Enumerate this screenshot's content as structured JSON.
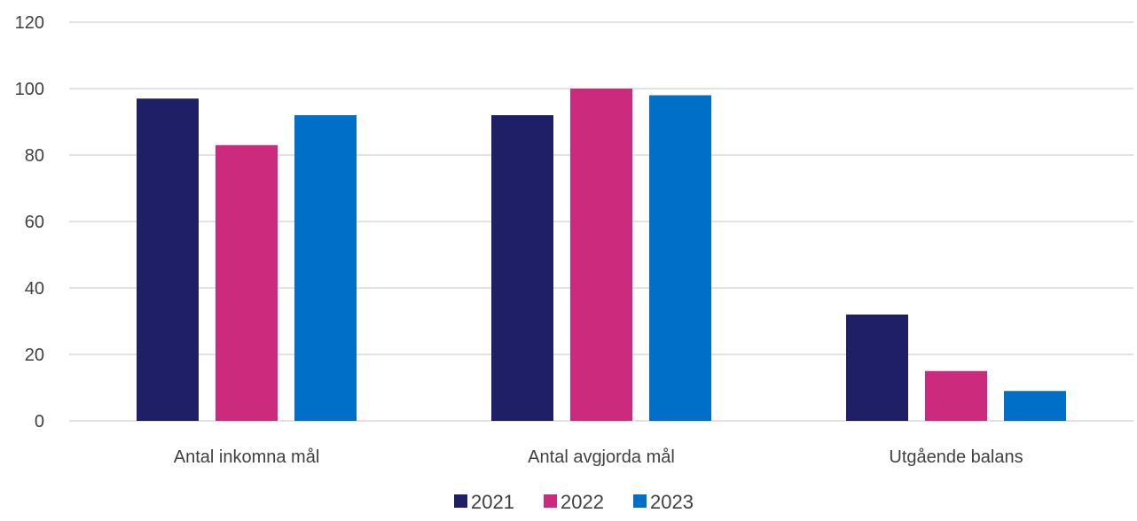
{
  "chart_data": {
    "type": "bar",
    "title": "",
    "xlabel": "",
    "ylabel": "",
    "categories": [
      "Antal inkomna mål",
      "Antal avgjorda mål",
      "Utgående balans"
    ],
    "series": [
      {
        "name": "2021",
        "color": "#1e1f66",
        "values": [
          97,
          92,
          32
        ]
      },
      {
        "name": "2022",
        "color": "#cc2a7d",
        "values": [
          83,
          100,
          15
        ]
      },
      {
        "name": "2023",
        "color": "#006fc8",
        "values": [
          92,
          98,
          9
        ]
      }
    ],
    "ylim": [
      0,
      120
    ],
    "yticks": [
      0,
      20,
      40,
      60,
      80,
      100,
      120
    ],
    "grid": true,
    "legend_position": "bottom-center"
  }
}
